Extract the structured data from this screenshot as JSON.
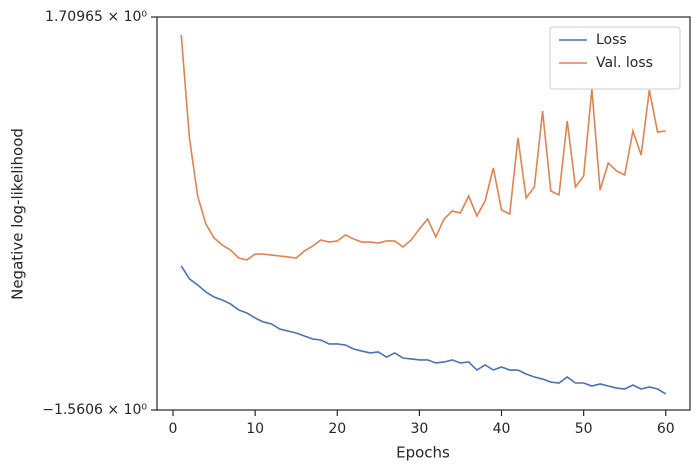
{
  "chart_data": {
    "type": "line",
    "x": [
      1,
      2,
      3,
      4,
      5,
      6,
      7,
      8,
      9,
      10,
      11,
      12,
      13,
      14,
      15,
      16,
      17,
      18,
      19,
      20,
      21,
      22,
      23,
      24,
      25,
      26,
      27,
      28,
      29,
      30,
      31,
      32,
      33,
      34,
      35,
      36,
      37,
      38,
      39,
      40,
      41,
      42,
      43,
      44,
      45,
      46,
      47,
      48,
      49,
      50,
      51,
      52,
      53,
      54,
      55,
      56,
      57,
      58,
      59,
      60
    ],
    "series": [
      {
        "name": "Loss",
        "color": "#4c72b0",
        "values": [
          -0.362,
          -0.47,
          -0.52,
          -0.579,
          -0.62,
          -0.645,
          -0.678,
          -0.728,
          -0.753,
          -0.795,
          -0.828,
          -0.845,
          -0.887,
          -0.903,
          -0.92,
          -0.945,
          -0.97,
          -0.978,
          -1.011,
          -1.011,
          -1.02,
          -1.053,
          -1.07,
          -1.086,
          -1.078,
          -1.12,
          -1.086,
          -1.128,
          -1.136,
          -1.144,
          -1.144,
          -1.169,
          -1.161,
          -1.144,
          -1.169,
          -1.161,
          -1.228,
          -1.186,
          -1.228,
          -1.203,
          -1.228,
          -1.228,
          -1.261,
          -1.286,
          -1.303,
          -1.328,
          -1.336,
          -1.286,
          -1.336,
          -1.336,
          -1.361,
          -1.344,
          -1.361,
          -1.378,
          -1.386,
          -1.353,
          -1.386,
          -1.369,
          -1.386,
          -1.427
        ]
      },
      {
        "name": "Val. loss",
        "color": "#dd8452",
        "values": [
          1.56,
          0.703,
          0.22,
          -0.013,
          -0.129,
          -0.188,
          -0.229,
          -0.296,
          -0.312,
          -0.263,
          -0.263,
          -0.271,
          -0.279,
          -0.287,
          -0.296,
          -0.237,
          -0.196,
          -0.146,
          -0.163,
          -0.154,
          -0.104,
          -0.138,
          -0.163,
          -0.163,
          -0.171,
          -0.154,
          -0.154,
          -0.204,
          -0.146,
          -0.054,
          0.029,
          -0.121,
          0.029,
          0.095,
          0.079,
          0.22,
          0.054,
          0.179,
          0.454,
          0.104,
          0.07,
          0.703,
          0.204,
          0.295,
          0.927,
          0.262,
          0.229,
          0.844,
          0.295,
          0.387,
          1.111,
          0.27,
          0.495,
          0.428,
          0.395,
          0.761,
          0.561,
          1.102,
          0.753,
          0.761
        ]
      }
    ],
    "xlabel": "Epochs",
    "ylabel": "Negative log-likelihood",
    "xlim": [
      -1.95,
      62.95
    ],
    "xticks": [
      0,
      10,
      20,
      30,
      40,
      50,
      60
    ],
    "ylim": [
      -1.5606,
      1.70965
    ],
    "yticks": [
      {
        "value": -1.5606,
        "label": "−1.5606 × 10⁰"
      },
      {
        "value": 1.70965,
        "label": "1.70965 × 10⁰"
      }
    ],
    "legend": "upper right"
  }
}
